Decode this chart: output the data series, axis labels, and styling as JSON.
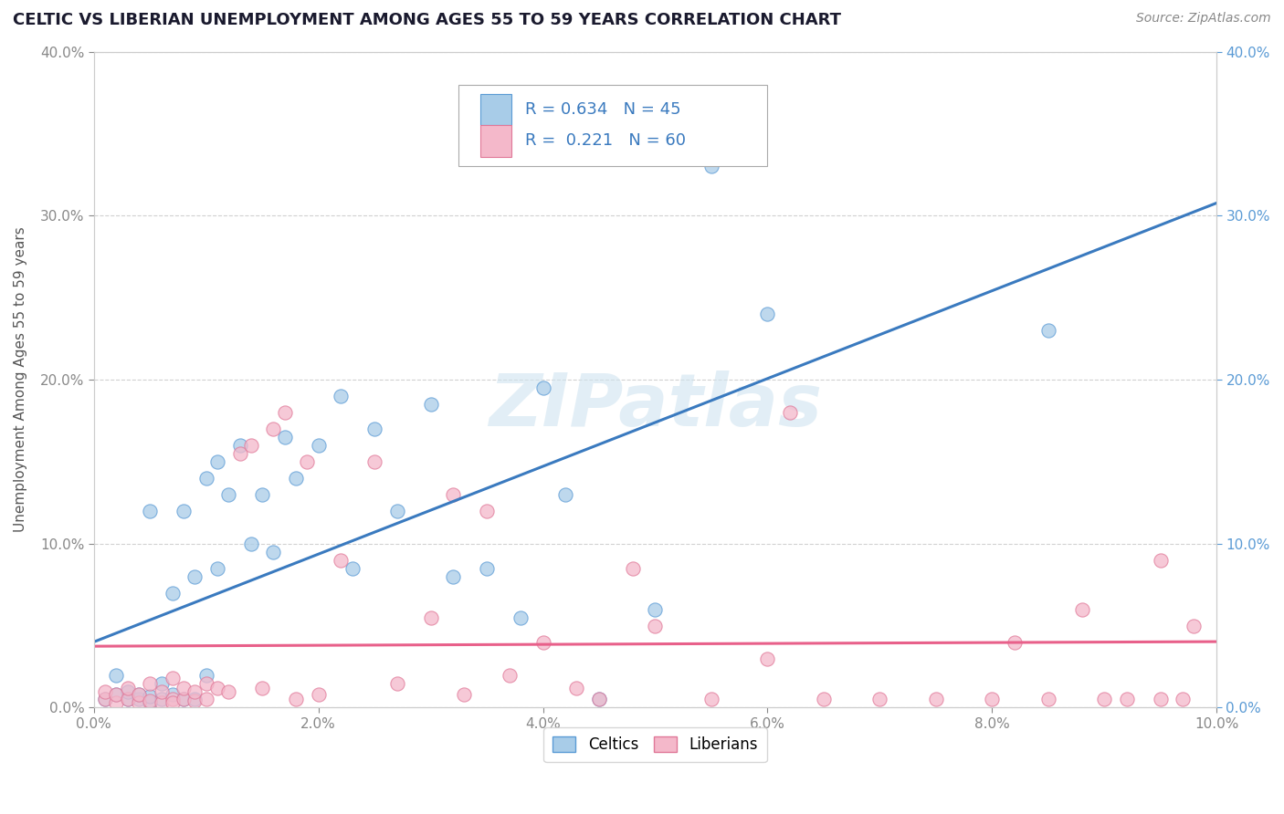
{
  "title": "CELTIC VS LIBERIAN UNEMPLOYMENT AMONG AGES 55 TO 59 YEARS CORRELATION CHART",
  "source": "Source: ZipAtlas.com",
  "ylabel": "Unemployment Among Ages 55 to 59 years",
  "xlim": [
    0.0,
    0.1
  ],
  "ylim": [
    0.0,
    0.4
  ],
  "xticks": [
    0.0,
    0.02,
    0.04,
    0.06,
    0.08,
    0.1
  ],
  "yticks": [
    0.0,
    0.1,
    0.2,
    0.3,
    0.4
  ],
  "xtick_labels": [
    "0.0%",
    "2.0%",
    "4.0%",
    "6.0%",
    "8.0%",
    "10.0%"
  ],
  "ytick_labels": [
    "0.0%",
    "10.0%",
    "20.0%",
    "30.0%",
    "40.0%"
  ],
  "celtics_color": "#a8cce8",
  "liberians_color": "#f4b8ca",
  "celtics_edge_color": "#5b9bd5",
  "liberians_edge_color": "#e07898",
  "celtics_line_color": "#3a7abf",
  "liberians_line_color": "#e8608a",
  "celtics_R": 0.634,
  "celtics_N": 45,
  "liberians_R": 0.221,
  "liberians_N": 60,
  "watermark": "ZIPatlas",
  "background_color": "#ffffff",
  "grid_color": "#cccccc",
  "celtics_x": [
    0.001,
    0.002,
    0.002,
    0.003,
    0.003,
    0.004,
    0.004,
    0.005,
    0.005,
    0.005,
    0.006,
    0.006,
    0.007,
    0.007,
    0.008,
    0.008,
    0.009,
    0.009,
    0.01,
    0.01,
    0.011,
    0.011,
    0.012,
    0.013,
    0.014,
    0.015,
    0.016,
    0.017,
    0.018,
    0.02,
    0.022,
    0.023,
    0.025,
    0.027,
    0.03,
    0.032,
    0.035,
    0.038,
    0.04,
    0.042,
    0.045,
    0.05,
    0.055,
    0.06,
    0.085
  ],
  "celtics_y": [
    0.005,
    0.008,
    0.02,
    0.005,
    0.01,
    0.005,
    0.008,
    0.003,
    0.007,
    0.12,
    0.005,
    0.015,
    0.008,
    0.07,
    0.005,
    0.12,
    0.005,
    0.08,
    0.02,
    0.14,
    0.085,
    0.15,
    0.13,
    0.16,
    0.1,
    0.13,
    0.095,
    0.165,
    0.14,
    0.16,
    0.19,
    0.085,
    0.17,
    0.12,
    0.185,
    0.08,
    0.085,
    0.055,
    0.195,
    0.13,
    0.005,
    0.06,
    0.33,
    0.24,
    0.23
  ],
  "liberians_x": [
    0.001,
    0.001,
    0.002,
    0.002,
    0.003,
    0.003,
    0.004,
    0.004,
    0.005,
    0.005,
    0.006,
    0.006,
    0.007,
    0.007,
    0.007,
    0.008,
    0.008,
    0.009,
    0.009,
    0.01,
    0.01,
    0.011,
    0.012,
    0.013,
    0.014,
    0.015,
    0.016,
    0.017,
    0.018,
    0.019,
    0.02,
    0.022,
    0.025,
    0.027,
    0.03,
    0.032,
    0.033,
    0.035,
    0.037,
    0.04,
    0.043,
    0.045,
    0.048,
    0.05,
    0.055,
    0.06,
    0.062,
    0.065,
    0.07,
    0.075,
    0.08,
    0.082,
    0.085,
    0.088,
    0.09,
    0.092,
    0.095,
    0.095,
    0.097,
    0.098
  ],
  "liberians_y": [
    0.005,
    0.01,
    0.003,
    0.008,
    0.005,
    0.012,
    0.003,
    0.008,
    0.004,
    0.015,
    0.003,
    0.01,
    0.005,
    0.003,
    0.018,
    0.005,
    0.012,
    0.004,
    0.01,
    0.005,
    0.015,
    0.012,
    0.01,
    0.155,
    0.16,
    0.012,
    0.17,
    0.18,
    0.005,
    0.15,
    0.008,
    0.09,
    0.15,
    0.015,
    0.055,
    0.13,
    0.008,
    0.12,
    0.02,
    0.04,
    0.012,
    0.005,
    0.085,
    0.05,
    0.005,
    0.03,
    0.18,
    0.005,
    0.005,
    0.005,
    0.005,
    0.04,
    0.005,
    0.06,
    0.005,
    0.005,
    0.005,
    0.09,
    0.005,
    0.05
  ]
}
